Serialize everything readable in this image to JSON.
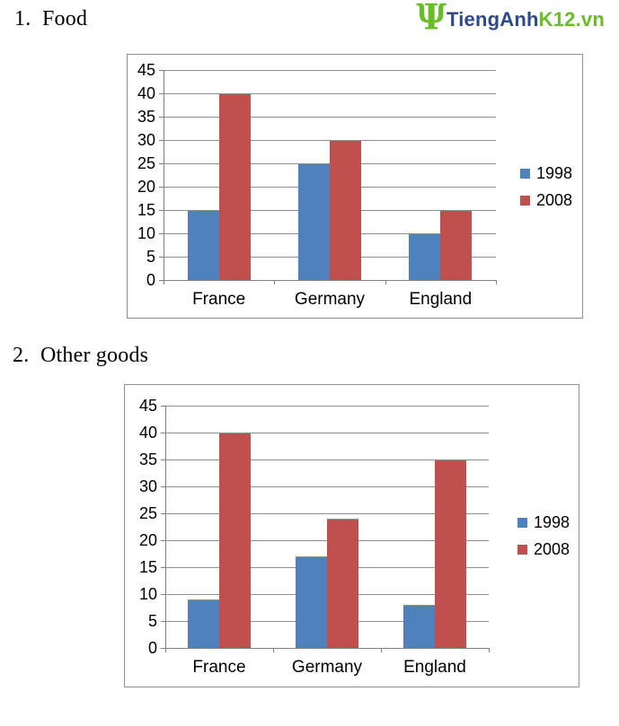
{
  "logo": {
    "glyph": "Ψ",
    "glyph_icon": "psi-plant-logo-icon",
    "text_primary": "TiengAnh",
    "text_secondary": "K12.vn",
    "color_primary": "#2c4a8c",
    "color_secondary": "#69bd27"
  },
  "sections": [
    {
      "number": "1.",
      "title": "Food"
    },
    {
      "number": "2.",
      "title": "Other goods"
    }
  ],
  "chart_data": [
    {
      "type": "bar",
      "title": "Food",
      "categories": [
        "France",
        "Germany",
        "England"
      ],
      "series": [
        {
          "name": "1998",
          "color": "#4F81BD",
          "values": [
            15,
            25,
            10
          ]
        },
        {
          "name": "2008",
          "color": "#C0504D",
          "values": [
            40,
            30,
            15
          ]
        }
      ],
      "ylim": [
        0,
        45
      ],
      "ytick_step": 5,
      "yticks": [
        0,
        5,
        10,
        15,
        20,
        25,
        30,
        35,
        40,
        45
      ],
      "grid": true,
      "legend_position": "right"
    },
    {
      "type": "bar",
      "title": "Other goods",
      "categories": [
        "France",
        "Germany",
        "England"
      ],
      "series": [
        {
          "name": "1998",
          "color": "#4F81BD",
          "values": [
            9,
            17,
            8
          ]
        },
        {
          "name": "2008",
          "color": "#C0504D",
          "values": [
            40,
            24,
            35
          ]
        }
      ],
      "ylim": [
        0,
        45
      ],
      "ytick_step": 5,
      "yticks": [
        0,
        5,
        10,
        15,
        20,
        25,
        30,
        35,
        40,
        45
      ],
      "grid": true,
      "legend_position": "right"
    }
  ]
}
